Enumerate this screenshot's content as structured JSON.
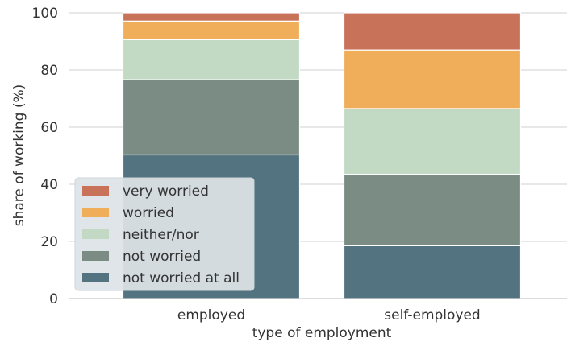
{
  "chart_data": {
    "type": "bar",
    "stacked": true,
    "xlabel": "type of employment",
    "ylabel": "share of working (%)",
    "ylim": [
      0,
      100
    ],
    "yticks": [
      0,
      20,
      40,
      60,
      80,
      100
    ],
    "grid": true,
    "legend_position": "lower-left",
    "categories": [
      "employed",
      "self-employed"
    ],
    "series": [
      {
        "name": "not worried at all",
        "color": "#52737f",
        "values": [
          50.3,
          18.5
        ]
      },
      {
        "name": "not worried",
        "color": "#7a8c84",
        "values": [
          26.3,
          25.0
        ]
      },
      {
        "name": "neither/nor",
        "color": "#c2d9c4",
        "values": [
          14.0,
          23.0
        ]
      },
      {
        "name": "worried",
        "color": "#f0ae5a",
        "values": [
          6.5,
          20.5
        ]
      },
      {
        "name": "very worried",
        "color": "#c8725a",
        "values": [
          2.9,
          13.0
        ]
      }
    ]
  }
}
